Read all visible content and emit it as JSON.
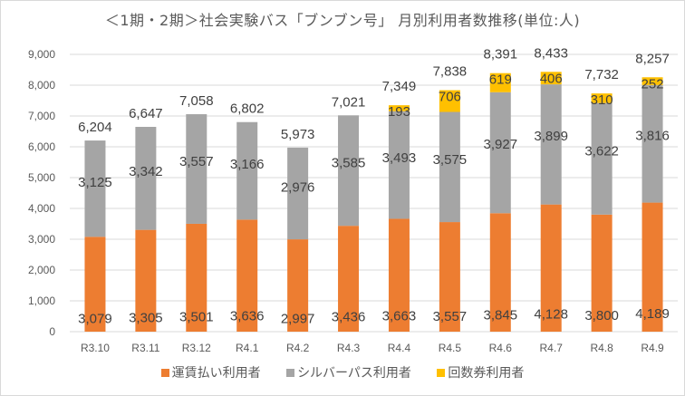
{
  "chart_data": {
    "type": "bar",
    "stacked": true,
    "title": "＜1期・2期＞社会実験バス「ブンブン号」 月別利用者数推移(単位:人)",
    "xlabel": "",
    "ylabel": "",
    "ylim": [
      0,
      9000
    ],
    "yticks": [
      0,
      1000,
      2000,
      3000,
      4000,
      5000,
      6000,
      7000,
      8000,
      9000
    ],
    "ytick_labels": [
      "0",
      "1,000",
      "2,000",
      "3,000",
      "4,000",
      "5,000",
      "6,000",
      "7,000",
      "8,000",
      "9,000"
    ],
    "grid": true,
    "legend_position": "bottom",
    "categories": [
      "R3.10",
      "R3.11",
      "R3.12",
      "R4.1",
      "R4.2",
      "R4.3",
      "R4.4",
      "R4.5",
      "R4.6",
      "R4.7",
      "R4.8",
      "R4.9"
    ],
    "series": [
      {
        "name": "運賃払い利用者",
        "color": "#ED7D31",
        "values": [
          3079,
          3305,
          3501,
          3636,
          2997,
          3436,
          3663,
          3557,
          3845,
          4128,
          3800,
          4189
        ]
      },
      {
        "name": "シルバーパス利用者",
        "color": "#A5A5A5",
        "values": [
          3125,
          3342,
          3557,
          3166,
          2976,
          3585,
          3493,
          3575,
          3927,
          3899,
          3622,
          3816
        ]
      },
      {
        "name": "回数券利用者",
        "color": "#FFC000",
        "values": [
          null,
          null,
          null,
          null,
          null,
          null,
          193,
          706,
          619,
          406,
          310,
          252
        ]
      }
    ],
    "totals": [
      6204,
      6647,
      7058,
      6802,
      5973,
      7021,
      7349,
      7838,
      8391,
      8433,
      7732,
      8257
    ]
  },
  "colors": {
    "gridline": "#d9d9d9",
    "text": "#595959",
    "label": "#404040"
  }
}
